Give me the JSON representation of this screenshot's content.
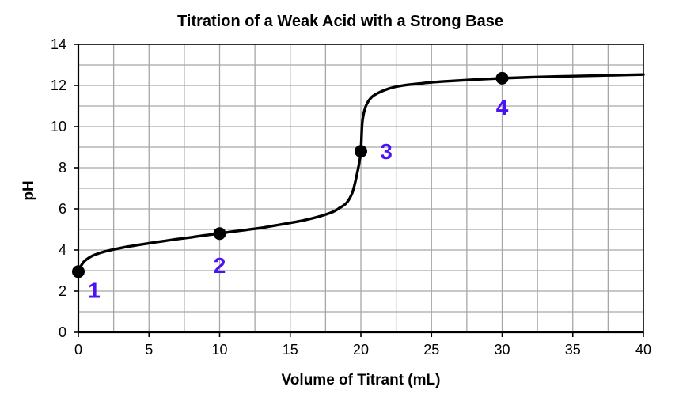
{
  "chart_data": {
    "type": "line",
    "title": "Titration of a Weak Acid with a Strong Base",
    "xlabel": "Volume of Titrant (mL)",
    "ylabel": "pH",
    "xlim": [
      0,
      40
    ],
    "ylim": [
      0,
      14
    ],
    "xticks": [
      0,
      5,
      10,
      15,
      20,
      25,
      30,
      35,
      40
    ],
    "yticks": [
      0,
      2,
      4,
      6,
      8,
      10,
      12,
      14
    ],
    "grid": true,
    "legend": "none",
    "series": [
      {
        "x": [
          0,
          0.25,
          0.5,
          1,
          1.5,
          2,
          3,
          4,
          5,
          6,
          7,
          8,
          9,
          10,
          11,
          12,
          13,
          14,
          15,
          16,
          17,
          18,
          18.5,
          19,
          19.4,
          19.7,
          19.9,
          20,
          20.1,
          20.3,
          20.6,
          21,
          22,
          23,
          24,
          25,
          26,
          28,
          30,
          32,
          34,
          36,
          38,
          40
        ],
        "y": [
          2.95,
          3.3,
          3.5,
          3.72,
          3.85,
          3.95,
          4.1,
          4.22,
          4.33,
          4.43,
          4.53,
          4.62,
          4.72,
          4.8,
          4.9,
          4.99,
          5.08,
          5.2,
          5.32,
          5.45,
          5.62,
          5.85,
          6.05,
          6.3,
          6.8,
          7.6,
          8.3,
          8.8,
          10.2,
          10.9,
          11.3,
          11.55,
          11.85,
          12.0,
          12.08,
          12.15,
          12.2,
          12.28,
          12.35,
          12.4,
          12.44,
          12.47,
          12.5,
          12.53
        ],
        "color": "#000000"
      }
    ],
    "points": [
      {
        "label": "1",
        "x": 0,
        "y": 2.95
      },
      {
        "label": "2",
        "x": 10,
        "y": 4.8
      },
      {
        "label": "3",
        "x": 20,
        "y": 8.8
      },
      {
        "label": "4",
        "x": 30,
        "y": 12.35
      }
    ],
    "colors": {
      "curve": "#000000",
      "point_fill": "#000000",
      "point_label": "#4a12f5",
      "grid": "#a6a6a6",
      "axis": "#000000"
    }
  }
}
